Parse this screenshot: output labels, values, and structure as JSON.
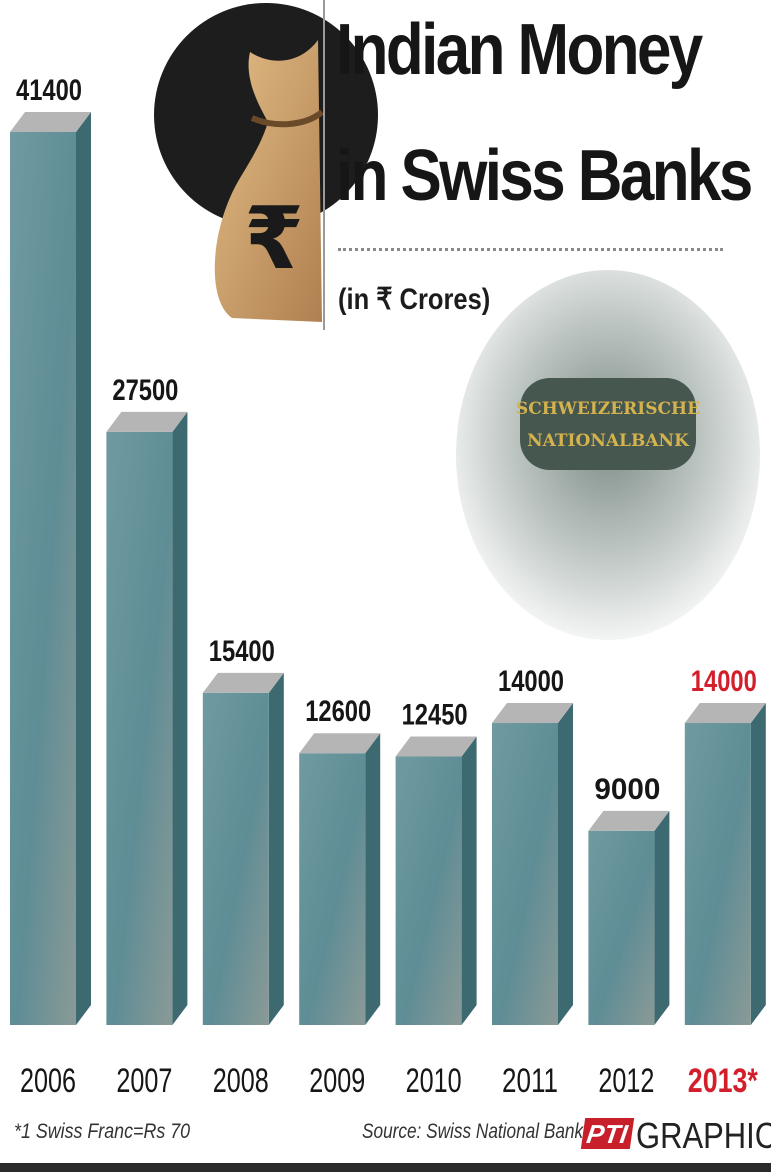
{
  "chart_data": {
    "type": "bar",
    "title": "Indian Money in Swiss Banks",
    "subtitle": "(in ₹ Crores)",
    "categories": [
      "2006",
      "2007",
      "2008",
      "2009",
      "2010",
      "2011",
      "2012",
      "2013*"
    ],
    "values": [
      41400,
      27500,
      15400,
      12600,
      12450,
      14000,
      9000,
      14000
    ],
    "value_labels": [
      "41400",
      "27500",
      "15400",
      "12600",
      "12450",
      "14000",
      "9000",
      "14000"
    ],
    "highlight_index": 7,
    "xlabel": "",
    "ylabel": "",
    "ylim": [
      0,
      41400
    ],
    "grid": false,
    "legend": "none",
    "footnote": "*1 Swiss Franc=Rs 70",
    "source": "Source: Swiss National Bank",
    "credit_brand": "PTI",
    "credit_text": "GRAPHICS"
  },
  "colors": {
    "bar_front": "#5f8d95",
    "bar_side": "#3d6970",
    "bar_top": "#b5b5b5",
    "label": "#161616",
    "highlight": "#d21f2b",
    "brand_red": "#c7202b",
    "bag": "#cfa36b",
    "medallion_bg": "#1d1d1d"
  },
  "images": {
    "money_bag_icon": "money-bag-icon",
    "rupee_symbol": "₹",
    "swiss_bank_emblem_text_1": "SCHWEIZERISCHE",
    "swiss_bank_emblem_text_2": "NATIONALBANK"
  }
}
